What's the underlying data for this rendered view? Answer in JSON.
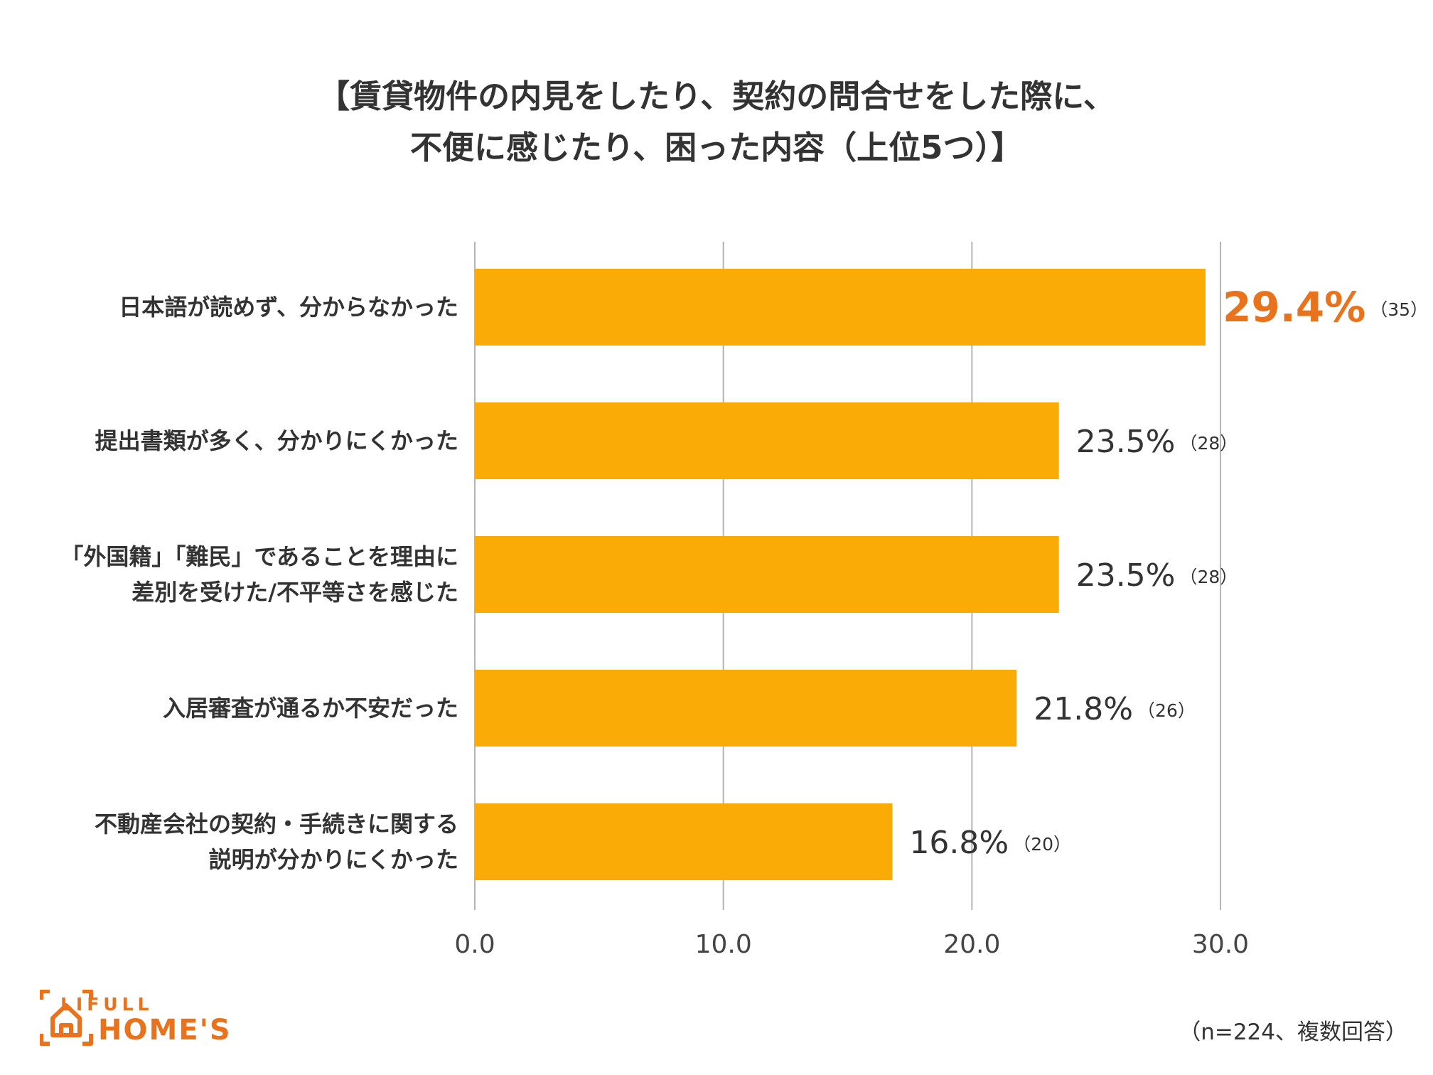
{
  "title_lines": [
    "【賃貸物件の内見をしたり、契約の問合せをした際に、",
    "不便に感じたり、困った内容（上位5つ）】"
  ],
  "chart_data": {
    "type": "bar",
    "orientation": "horizontal",
    "categories": [
      [
        "日本語が読めず、分からなかった"
      ],
      [
        "提出書類が多く、分かりにくかった"
      ],
      [
        "「外国籍」「難民」であることを理由に",
        "差別を受けた/不平等さを感じた"
      ],
      [
        "入居審査が通るか不安だった"
      ],
      [
        "不動産会社の契約・手続きに関する",
        "説明が分かりにくかった"
      ]
    ],
    "values": [
      29.4,
      23.5,
      23.5,
      21.8,
      16.8
    ],
    "value_labels": [
      "29.4%",
      "23.5%",
      "23.5%",
      "21.8%",
      "16.8%"
    ],
    "counts": [
      "（35）",
      "（28）",
      "（28）",
      "（26）",
      "（20）"
    ],
    "xlim": [
      0,
      30
    ],
    "xticks": [
      "0.0",
      "10.0",
      "20.0",
      "30.0"
    ],
    "xtick_values": [
      0,
      10,
      20,
      30
    ],
    "grid": true,
    "bar_color": "#fbab06",
    "highlight_color": "#e8731c",
    "label_color": "#333333"
  },
  "note": "（n=224、複数回答）",
  "logo": {
    "small_text": "LIFULL",
    "big_text": "HOME'S",
    "icon": "house-icon",
    "color": "#e8731c"
  }
}
